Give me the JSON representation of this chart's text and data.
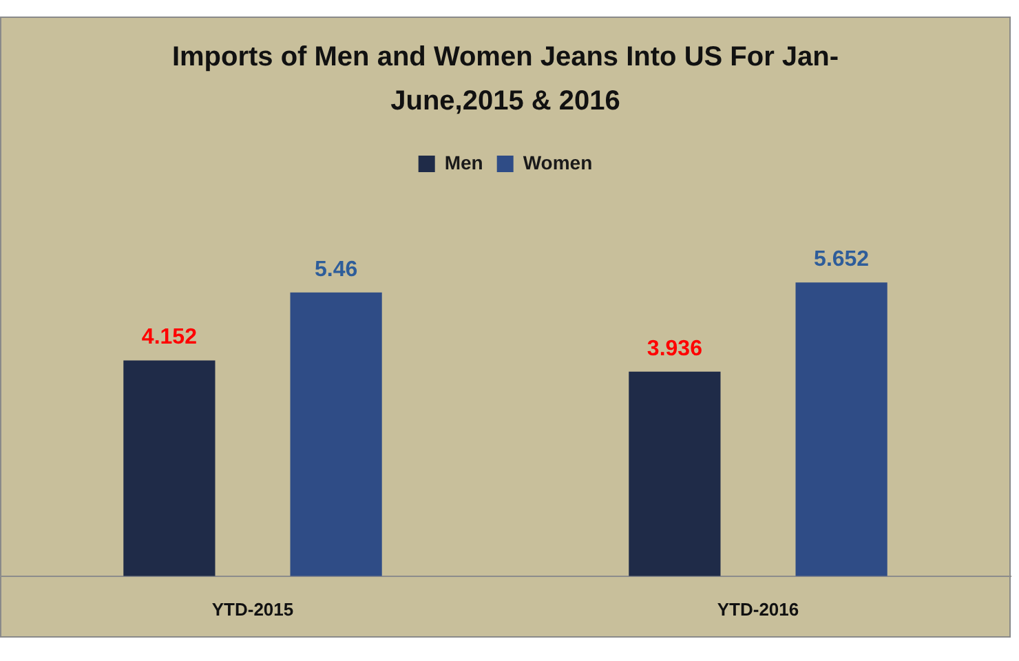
{
  "chart_data": {
    "type": "bar",
    "title": "Imports of Men and Women Jeans Into US For Jan-June,2015 & 2016",
    "categories": [
      "YTD-2015",
      "YTD-2016"
    ],
    "series": [
      {
        "name": "Men",
        "color": "#1f2b48",
        "values": [
          4.152,
          3.936
        ]
      },
      {
        "name": "Women",
        "color": "#2f4c86",
        "values": [
          5.46,
          5.652
        ]
      }
    ],
    "data_labels": true,
    "legend": "top",
    "grid": false
  }
}
